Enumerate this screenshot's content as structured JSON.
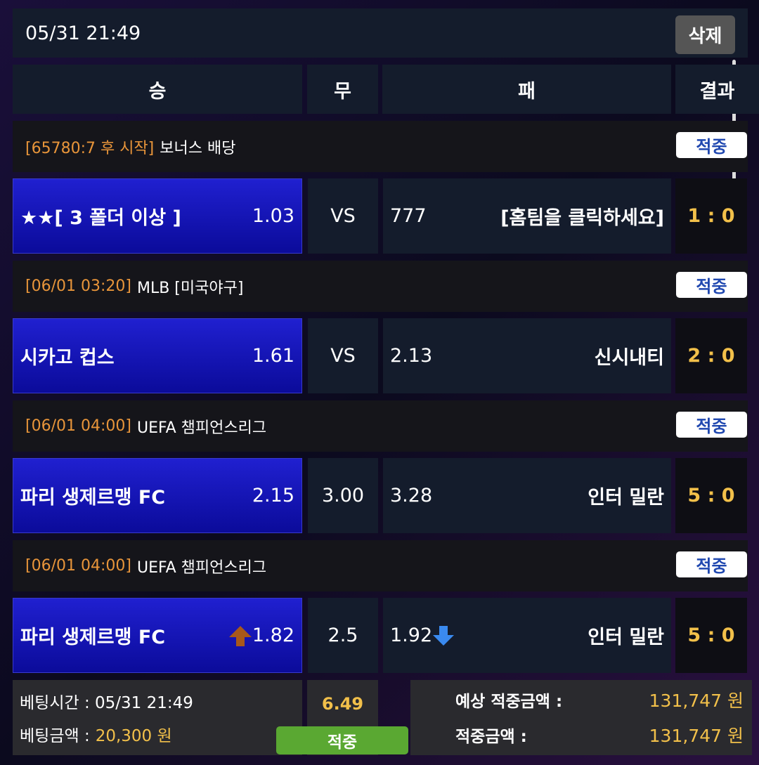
{
  "header": {
    "datetime": "05/31 21:49",
    "delete_button": "삭제"
  },
  "columns": [
    "승",
    "무",
    "패",
    "결과"
  ],
  "games": [
    {
      "time": "[65780:7 후 시작]",
      "league": "보너스 배당",
      "status": "적중",
      "home": "★★[ 3 폴더 이상 ]",
      "home_odds": "1.03",
      "draw": "VS",
      "away_odds": "777",
      "away": "[홈팀을 클릭하세요]",
      "score": "1 : 0"
    },
    {
      "time": "[06/01 03:20]",
      "league": "MLB [미국야구]",
      "status": "적중",
      "home": "시카고 컵스",
      "home_odds": "1.61",
      "draw": "VS",
      "away_odds": "2.13",
      "away": "신시내티",
      "score": "2 : 0"
    },
    {
      "time": "[06/01 04:00]",
      "league": "UEFA 챔피언스리그",
      "status": "적중",
      "home": "파리 생제르맹 FC",
      "home_odds": "2.15",
      "draw": "3.00",
      "away_odds": "3.28",
      "away": "인터 밀란",
      "score": "5 : 0"
    },
    {
      "time": "[06/01 04:00]",
      "league": "UEFA 챔피언스리그",
      "status": "적중",
      "home": "파리 생제르맹 FC",
      "home_odds": "1.82",
      "draw": "2.5",
      "away_odds": "1.92",
      "away": "인터 밀란",
      "score": "5 : 0"
    }
  ],
  "summary": {
    "bet_time": "베팅시간 : 05/31 21:49",
    "bet_amount_label": "베팅금액 :",
    "bet_amount": "20,300 원",
    "total_odds": "6.49",
    "status": "적중",
    "expected_label": "예상 적중금액 :",
    "expected_amount": "131,747 원",
    "win_label": "적중금액 :",
    "win_amount": "131,747 원"
  }
}
